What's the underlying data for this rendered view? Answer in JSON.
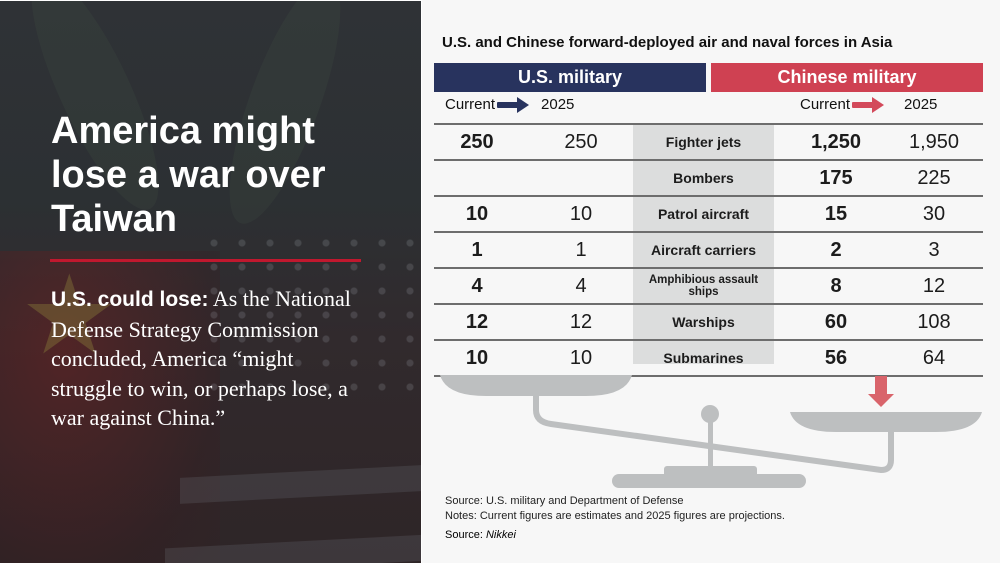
{
  "slide": {
    "title": "America might lose a war over Taiwan",
    "body_lead": "U.S. could lose:",
    "body_text": " As the National Defense Strategy Commission concluded, America “might struggle to win, or perhaps lose, a war against China.”",
    "accent_color": "#c0182e"
  },
  "infographic": {
    "title": "U.S. and Chinese forward-deployed air and naval forces in Asia",
    "us_header": "U.S. military",
    "cn_header": "Chinese military",
    "us_header_color": "#28335e",
    "cn_header_color": "#cf4152",
    "us_sub": {
      "current": "Current",
      "future": "2025"
    },
    "cn_sub": {
      "current": "Current",
      "future": "2025"
    },
    "rows": [
      {
        "label": "Fighter jets",
        "us_current": "250",
        "us_2025": "250",
        "cn_current": "1,250",
        "cn_2025": "1,950"
      },
      {
        "label": "Bombers",
        "us_current": "",
        "us_2025": "",
        "cn_current": "175",
        "cn_2025": "225"
      },
      {
        "label": "Patrol aircraft",
        "us_current": "10",
        "us_2025": "10",
        "cn_current": "15",
        "cn_2025": "30"
      },
      {
        "label": "Aircraft carriers",
        "us_current": "1",
        "us_2025": "1",
        "cn_current": "2",
        "cn_2025": "3"
      },
      {
        "label": "Amphibious assault ships",
        "us_current": "4",
        "us_2025": "4",
        "cn_current": "8",
        "cn_2025": "12"
      },
      {
        "label": "Warships",
        "us_current": "12",
        "us_2025": "12",
        "cn_current": "60",
        "cn_2025": "108"
      },
      {
        "label": "Submarines",
        "us_current": "10",
        "us_2025": "10",
        "cn_current": "56",
        "cn_2025": "64"
      }
    ],
    "scale_icon": "balance-scale-icon",
    "arrow_icon": "down-arrow-icon",
    "source_line": "Source: U.S. military and Department of Defense",
    "notes_line": "Notes: Current figures are estimates and 2025 figures are projections.",
    "source2_prefix": "Source: ",
    "source2_name": "Nikkei"
  }
}
